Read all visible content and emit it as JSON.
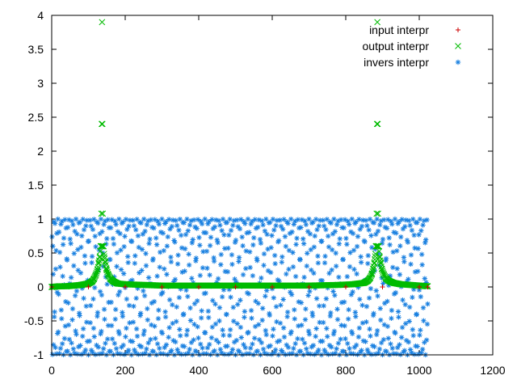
{
  "chart_data": {
    "type": "scatter",
    "xlim": [
      0,
      1200
    ],
    "ylim": [
      -1,
      4
    ],
    "x_ticks": [
      0,
      200,
      400,
      600,
      800,
      1000,
      1200
    ],
    "y_ticks": [
      -1,
      -0.5,
      0,
      0.5,
      1,
      1.5,
      2,
      2.5,
      3,
      3.5,
      4
    ],
    "grid": false,
    "legend_position": "top-right",
    "series": [
      {
        "name": "input interpr",
        "marker": "plus",
        "color": "#cc0000",
        "points": [
          [
            0,
            0
          ],
          [
            100,
            0
          ],
          [
            200,
            0
          ],
          [
            300,
            0
          ],
          [
            400,
            0
          ],
          [
            500,
            0
          ],
          [
            600,
            0
          ],
          [
            700,
            0
          ],
          [
            800,
            0
          ],
          [
            900,
            0
          ],
          [
            1000,
            0
          ],
          [
            1023,
            0
          ]
        ]
      },
      {
        "name": "output interpr",
        "marker": "cross",
        "color": "#00bb00",
        "points": [
          [
            0,
            0
          ],
          [
            20,
            0.01
          ],
          [
            40,
            0.01
          ],
          [
            60,
            0.02
          ],
          [
            80,
            0.03
          ],
          [
            100,
            0.05
          ],
          [
            110,
            0.08
          ],
          [
            115,
            0.12
          ],
          [
            120,
            0.18
          ],
          [
            125,
            0.26
          ],
          [
            128,
            0.36
          ],
          [
            131,
            0.45
          ],
          [
            133,
            0.6
          ],
          [
            135,
            1.08
          ],
          [
            136,
            2.4
          ],
          [
            137,
            3.9
          ],
          [
            138,
            2.4
          ],
          [
            139,
            1.08
          ],
          [
            141,
            0.6
          ],
          [
            143,
            0.45
          ],
          [
            146,
            0.36
          ],
          [
            149,
            0.26
          ],
          [
            154,
            0.18
          ],
          [
            160,
            0.12
          ],
          [
            168,
            0.08
          ],
          [
            180,
            0.05
          ],
          [
            200,
            0.04
          ],
          [
            250,
            0.03
          ],
          [
            300,
            0.02
          ],
          [
            400,
            0.02
          ],
          [
            500,
            0.02
          ],
          [
            600,
            0.02
          ],
          [
            700,
            0.02
          ],
          [
            780,
            0.03
          ],
          [
            820,
            0.04
          ],
          [
            850,
            0.06
          ],
          [
            860,
            0.09
          ],
          [
            866,
            0.13
          ],
          [
            871,
            0.19
          ],
          [
            875,
            0.27
          ],
          [
            878,
            0.36
          ],
          [
            880,
            0.45
          ],
          [
            882,
            0.6
          ],
          [
            884,
            1.08
          ],
          [
            885,
            2.4
          ],
          [
            886,
            3.9
          ],
          [
            887,
            2.4
          ],
          [
            888,
            1.08
          ],
          [
            890,
            0.6
          ],
          [
            892,
            0.45
          ],
          [
            895,
            0.36
          ],
          [
            898,
            0.27
          ],
          [
            903,
            0.19
          ],
          [
            909,
            0.13
          ],
          [
            917,
            0.09
          ],
          [
            930,
            0.06
          ],
          [
            950,
            0.04
          ],
          [
            1000,
            0.02
          ],
          [
            1023,
            0.01
          ]
        ]
      },
      {
        "name": "invers interpr",
        "marker": "star",
        "color": "#1a80e0",
        "x_range": [
          0,
          1023
        ],
        "y_range": [
          -1,
          1
        ],
        "note_points": "dense Lissajous-like band of samples at y = sin(k*x) for x in 0..1023"
      }
    ]
  }
}
